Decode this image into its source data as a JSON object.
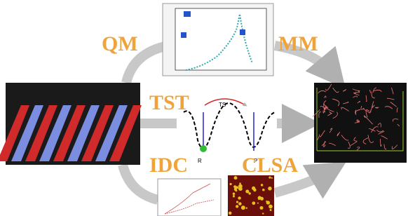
{
  "methods": [
    "QM",
    "MM",
    "TST",
    "IDC",
    "CLSA"
  ],
  "energy_diagram": {
    "transition_state": "TS",
    "reactant": "R",
    "product": "P"
  }
}
